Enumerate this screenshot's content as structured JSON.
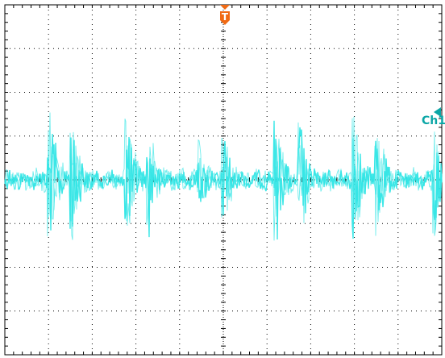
{
  "screen": {
    "trigger_marker": "T",
    "channel_marker": "Ch1",
    "colors": {
      "background": "#ffffff",
      "graticule": "#000000",
      "trace": "#33e6e6",
      "trigger": "#f06a14",
      "channel": "#0aa6a6"
    },
    "divisions": {
      "horizontal": 10,
      "vertical": 8
    },
    "icons": {
      "trigger": "trigger-position-icon",
      "channel": "channel-reference-icon"
    }
  }
}
